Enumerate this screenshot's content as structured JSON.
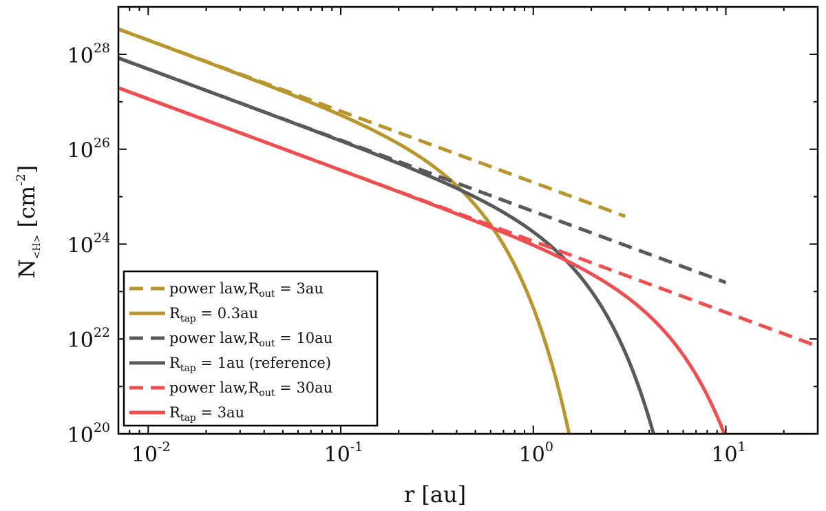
{
  "chart_data": {
    "type": "line",
    "xlabel": "r [au]",
    "ylabel": {
      "base": "N",
      "sub": "<H>",
      "unit_open": " [cm",
      "unit_sup": "-2",
      "unit_close": "]"
    },
    "xscale": "log",
    "yscale": "log",
    "xlim": [
      0.007,
      30
    ],
    "ylim": [
      1e+20,
      1e+29
    ],
    "x_ticks": [
      {
        "base": "10",
        "exp": "-2",
        "value": 0.01
      },
      {
        "base": "10",
        "exp": "-1",
        "value": 0.1
      },
      {
        "base": "10",
        "exp": "0",
        "value": 1
      },
      {
        "base": "10",
        "exp": "1",
        "value": 10
      }
    ],
    "y_ticks": [
      {
        "base": "10",
        "exp": "20",
        "value": 1e+20
      },
      {
        "base": "10",
        "exp": "22",
        "value": 1e+22
      },
      {
        "base": "10",
        "exp": "24",
        "value": 1e+24
      },
      {
        "base": "10",
        "exp": "26",
        "value": 1e+26
      },
      {
        "base": "10",
        "exp": "28",
        "value": 1e+28
      }
    ],
    "legend_position": "lower-left",
    "series": [
      {
        "name": "power law, R_out = 3au",
        "label_pre": "power law,R",
        "label_sub": "out",
        "label_post": " = 3au",
        "color": "#b8962e",
        "style": "dashed",
        "model": "powerlaw",
        "N0": 2e+25,
        "p": 1.5,
        "rmax": 3
      },
      {
        "name": "R_tap = 0.3au",
        "label_pre": "R",
        "label_sub": "tap",
        "label_post": " = 0.3au",
        "color": "#b8962e",
        "style": "solid",
        "model": "tapered",
        "N0": 2e+25,
        "p": 1.5,
        "rtap": 0.3,
        "q": 0.5
      },
      {
        "name": "power law, R_out = 10au",
        "label_pre": "power law,R",
        "label_sub": "out",
        "label_post": " = 10au",
        "color": "#595959",
        "style": "dashed",
        "model": "powerlaw",
        "N0": 4.9e+24,
        "p": 1.5,
        "rmax": 10
      },
      {
        "name": "R_tap = 1au (reference)",
        "label_pre": "R",
        "label_sub": "tap",
        "label_post": " = 1au (reference)",
        "color": "#595959",
        "style": "solid",
        "model": "tapered",
        "N0": 4.9e+24,
        "p": 1.5,
        "rtap": 1,
        "q": 0.5
      },
      {
        "name": "power law, R_out = 30au",
        "label_pre": "power law,R",
        "label_sub": "out",
        "label_post": " = 30au",
        "color": "#ee4f50",
        "style": "dashed",
        "model": "powerlaw",
        "N0": 1.15e+24,
        "p": 1.5,
        "rmax": 30
      },
      {
        "name": "R_tap = 3au",
        "label_pre": "R",
        "label_sub": "tap",
        "label_post": " = 3au",
        "color": "#ee4f50",
        "style": "solid",
        "model": "tapered",
        "N0": 1.15e+24,
        "p": 1.5,
        "rtap": 3,
        "q": 0.5
      }
    ]
  }
}
